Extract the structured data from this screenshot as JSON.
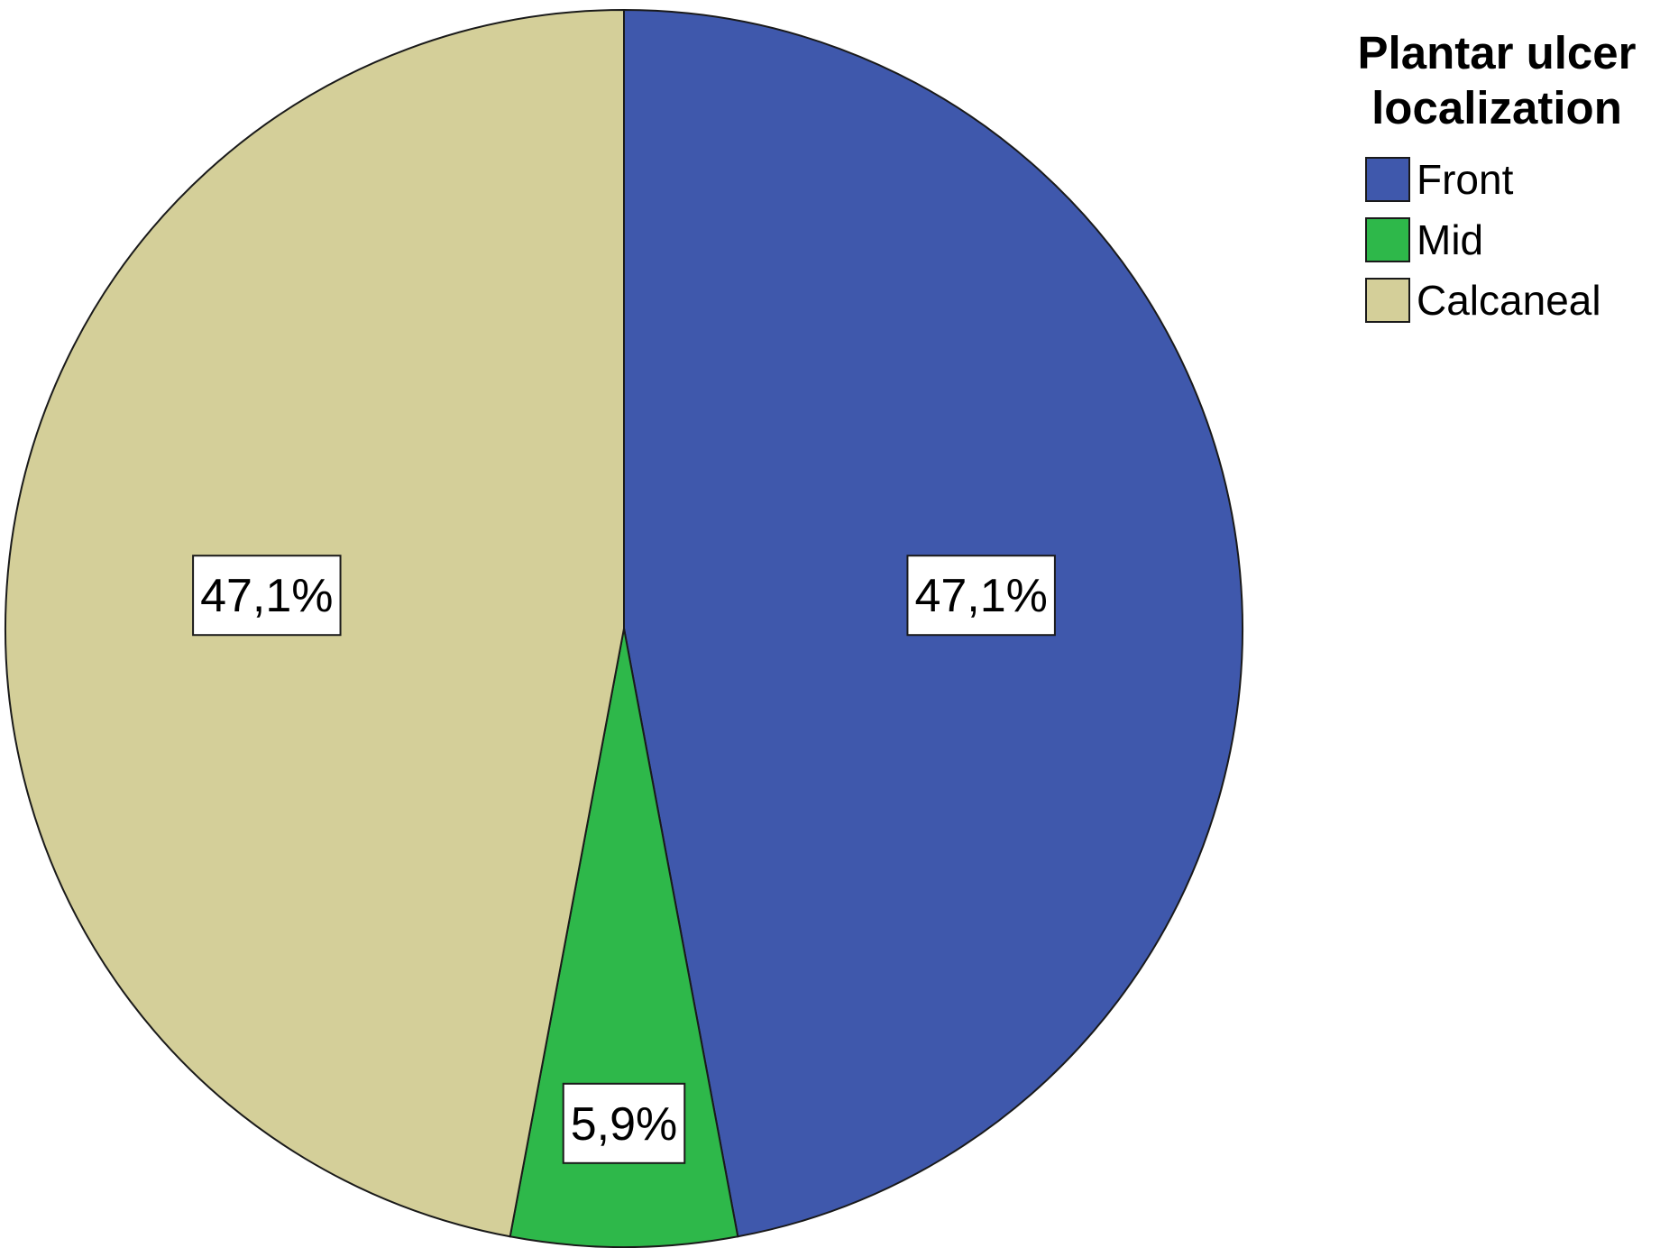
{
  "chart_data": {
    "type": "pie",
    "legend_title": [
      "Plantar ulcer",
      "localization"
    ],
    "legend_position": "top-right",
    "slices": [
      {
        "name": "Front",
        "value": 47.1,
        "label": "47,1%",
        "color": "#3F58AC"
      },
      {
        "name": "Mid",
        "value": 5.9,
        "label": "5,9%",
        "color": "#2EB84A"
      },
      {
        "name": "Calcaneal",
        "value": 47.1,
        "label": "47,1%",
        "color": "#D4CF99"
      }
    ]
  }
}
